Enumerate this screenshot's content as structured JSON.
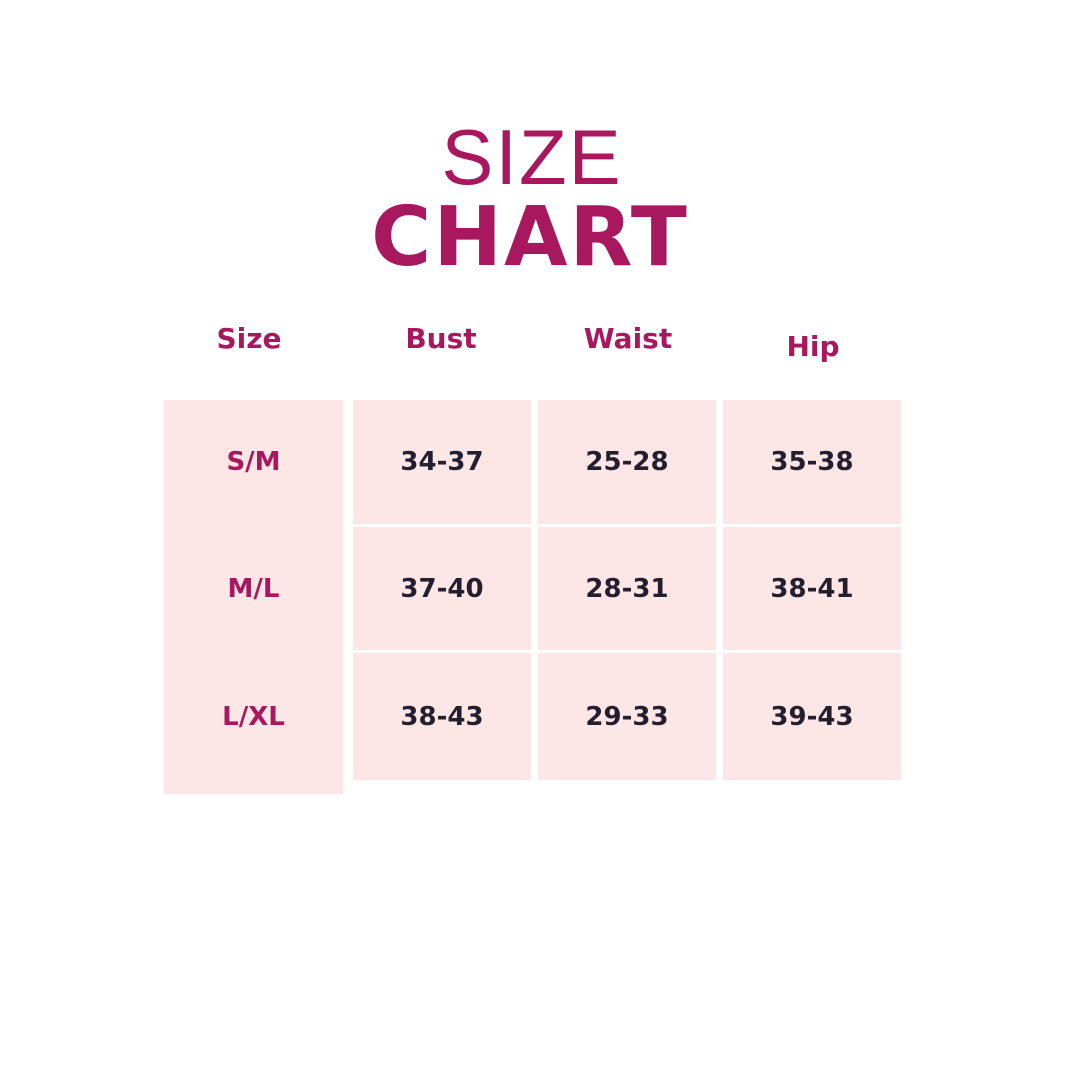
{
  "title": {
    "line1": "SIZE",
    "line2": "CHART"
  },
  "colors": {
    "accent": "#a8185e",
    "cell_bg": "#fce6e6",
    "value_text": "#231f2e"
  },
  "table": {
    "headers": [
      "Size",
      "Bust",
      "Waist",
      "Hip"
    ],
    "rows": [
      [
        "S/M",
        "34-37",
        "25-28",
        "35-38"
      ],
      [
        "M/L",
        "37-40",
        "28-31",
        "38-41"
      ],
      [
        "L/XL",
        "38-43",
        "29-33",
        "39-43"
      ]
    ]
  }
}
